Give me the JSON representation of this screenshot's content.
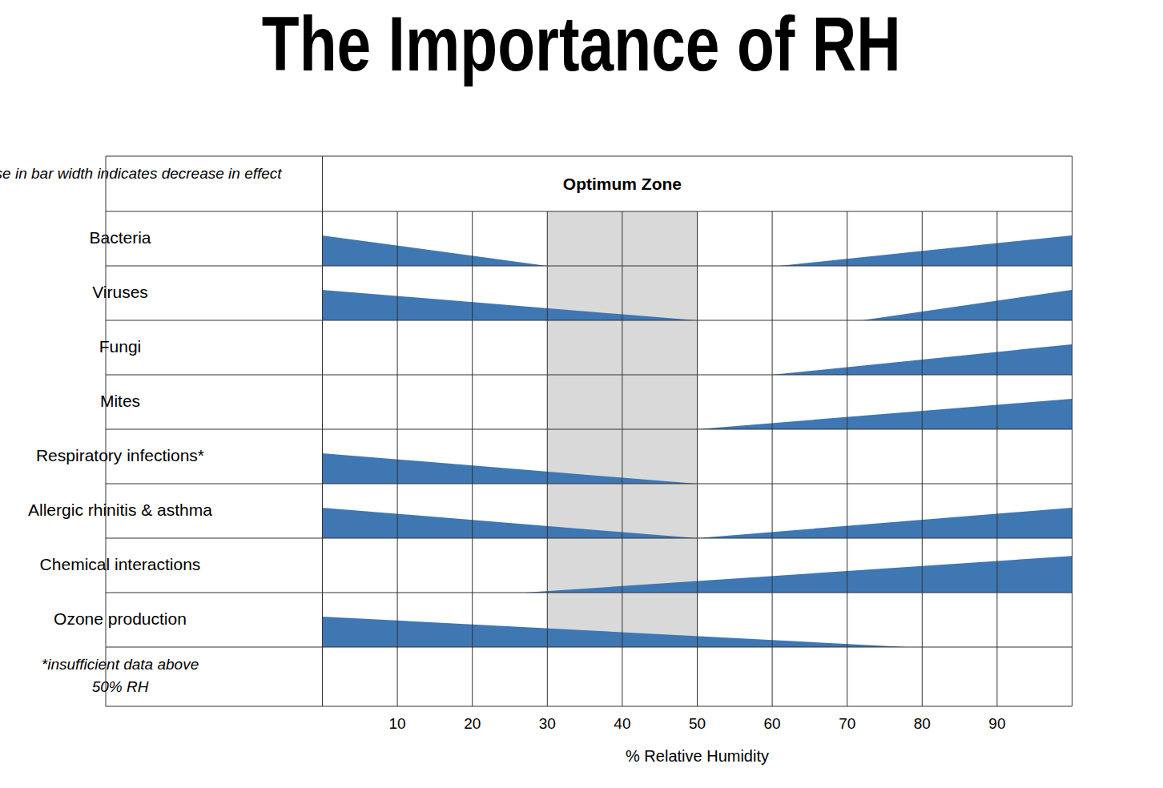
{
  "chart_data": {
    "type": "wedge",
    "title": "The Importance of RH",
    "note": "Decrease in bar width indicates decrease in effect",
    "zone": {
      "label": "Optimum Zone",
      "x": [
        30,
        50
      ],
      "color": "#d9d9d9"
    },
    "footnote": [
      "*insufficient data above",
      "50% RH"
    ],
    "x_label": "% Relative Humidity",
    "xlim": [
      0,
      100
    ],
    "xticks": [
      10,
      20,
      30,
      40,
      50,
      60,
      70,
      80,
      90
    ],
    "grid": true,
    "color": "#3f77b3",
    "categories": [
      "Bacteria",
      "Viruses",
      "Fungi",
      "Mites",
      "Respiratory infections*",
      "Allergic rhinitis & asthma",
      "Chemical interactions",
      "Ozone production"
    ],
    "wedges": [
      [
        {
          "x": [
            0,
            30
          ],
          "effect": [
            1,
            0
          ]
        },
        {
          "x": [
            61,
            100
          ],
          "effect": [
            0,
            1
          ]
        }
      ],
      [
        {
          "x": [
            0,
            50
          ],
          "effect": [
            1,
            0
          ]
        },
        {
          "x": [
            72,
            100
          ],
          "effect": [
            0,
            1
          ]
        }
      ],
      [
        {
          "x": [
            60,
            100
          ],
          "effect": [
            0,
            1
          ]
        }
      ],
      [
        {
          "x": [
            50,
            100
          ],
          "effect": [
            0,
            1
          ]
        }
      ],
      [
        {
          "x": [
            0,
            50
          ],
          "effect": [
            1,
            0
          ]
        }
      ],
      [
        {
          "x": [
            0,
            50
          ],
          "effect": [
            1,
            0
          ]
        },
        {
          "x": [
            50,
            100
          ],
          "effect": [
            0,
            1
          ]
        }
      ],
      [
        {
          "x": [
            27,
            100
          ],
          "effect": [
            0,
            1.2
          ]
        }
      ],
      [
        {
          "x": [
            0,
            78
          ],
          "effect": [
            1,
            0
          ]
        }
      ]
    ]
  }
}
